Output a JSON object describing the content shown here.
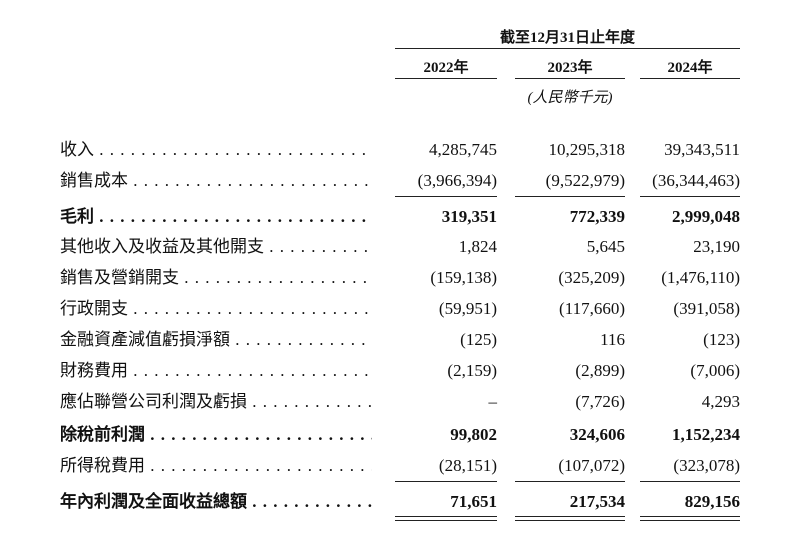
{
  "header": {
    "period": "截至12月31日止年度",
    "columns": [
      "2022年",
      "2023年",
      "2024年"
    ],
    "unit": "(人民幣千元)"
  },
  "table": {
    "rows": [
      {
        "label": "收入",
        "values": [
          "4,285,745",
          "10,295,318",
          "39,343,511"
        ]
      },
      {
        "label": "銷售成本",
        "values": [
          "(3,966,394)",
          "(9,522,979)",
          "(36,344,463)"
        ]
      },
      {
        "label": "毛利",
        "values": [
          "319,351",
          "772,339",
          "2,999,048"
        ]
      },
      {
        "label": "其他收入及收益及其他開支",
        "values": [
          "1,824",
          "5,645",
          "23,190"
        ]
      },
      {
        "label": "銷售及營銷開支",
        "values": [
          "(159,138)",
          "(325,209)",
          "(1,476,110)"
        ]
      },
      {
        "label": "行政開支",
        "values": [
          "(59,951)",
          "(117,660)",
          "(391,058)"
        ]
      },
      {
        "label": "金融資產減值虧損淨額",
        "values": [
          "(125)",
          "116",
          "(123)"
        ]
      },
      {
        "label": "財務費用",
        "values": [
          "(2,159)",
          "(2,899)",
          "(7,006)"
        ]
      },
      {
        "label": "應佔聯營公司利潤及虧損",
        "values": [
          "–",
          "(7,726)",
          "4,293"
        ]
      },
      {
        "label": "除稅前利潤",
        "values": [
          "99,802",
          "324,606",
          "1,152,234"
        ]
      },
      {
        "label": "所得稅費用",
        "values": [
          "(28,151)",
          "(107,072)",
          "(323,078)"
        ]
      },
      {
        "label": "年內利潤及全面收益總額",
        "values": [
          "71,651",
          "217,534",
          "829,156"
        ]
      }
    ]
  }
}
